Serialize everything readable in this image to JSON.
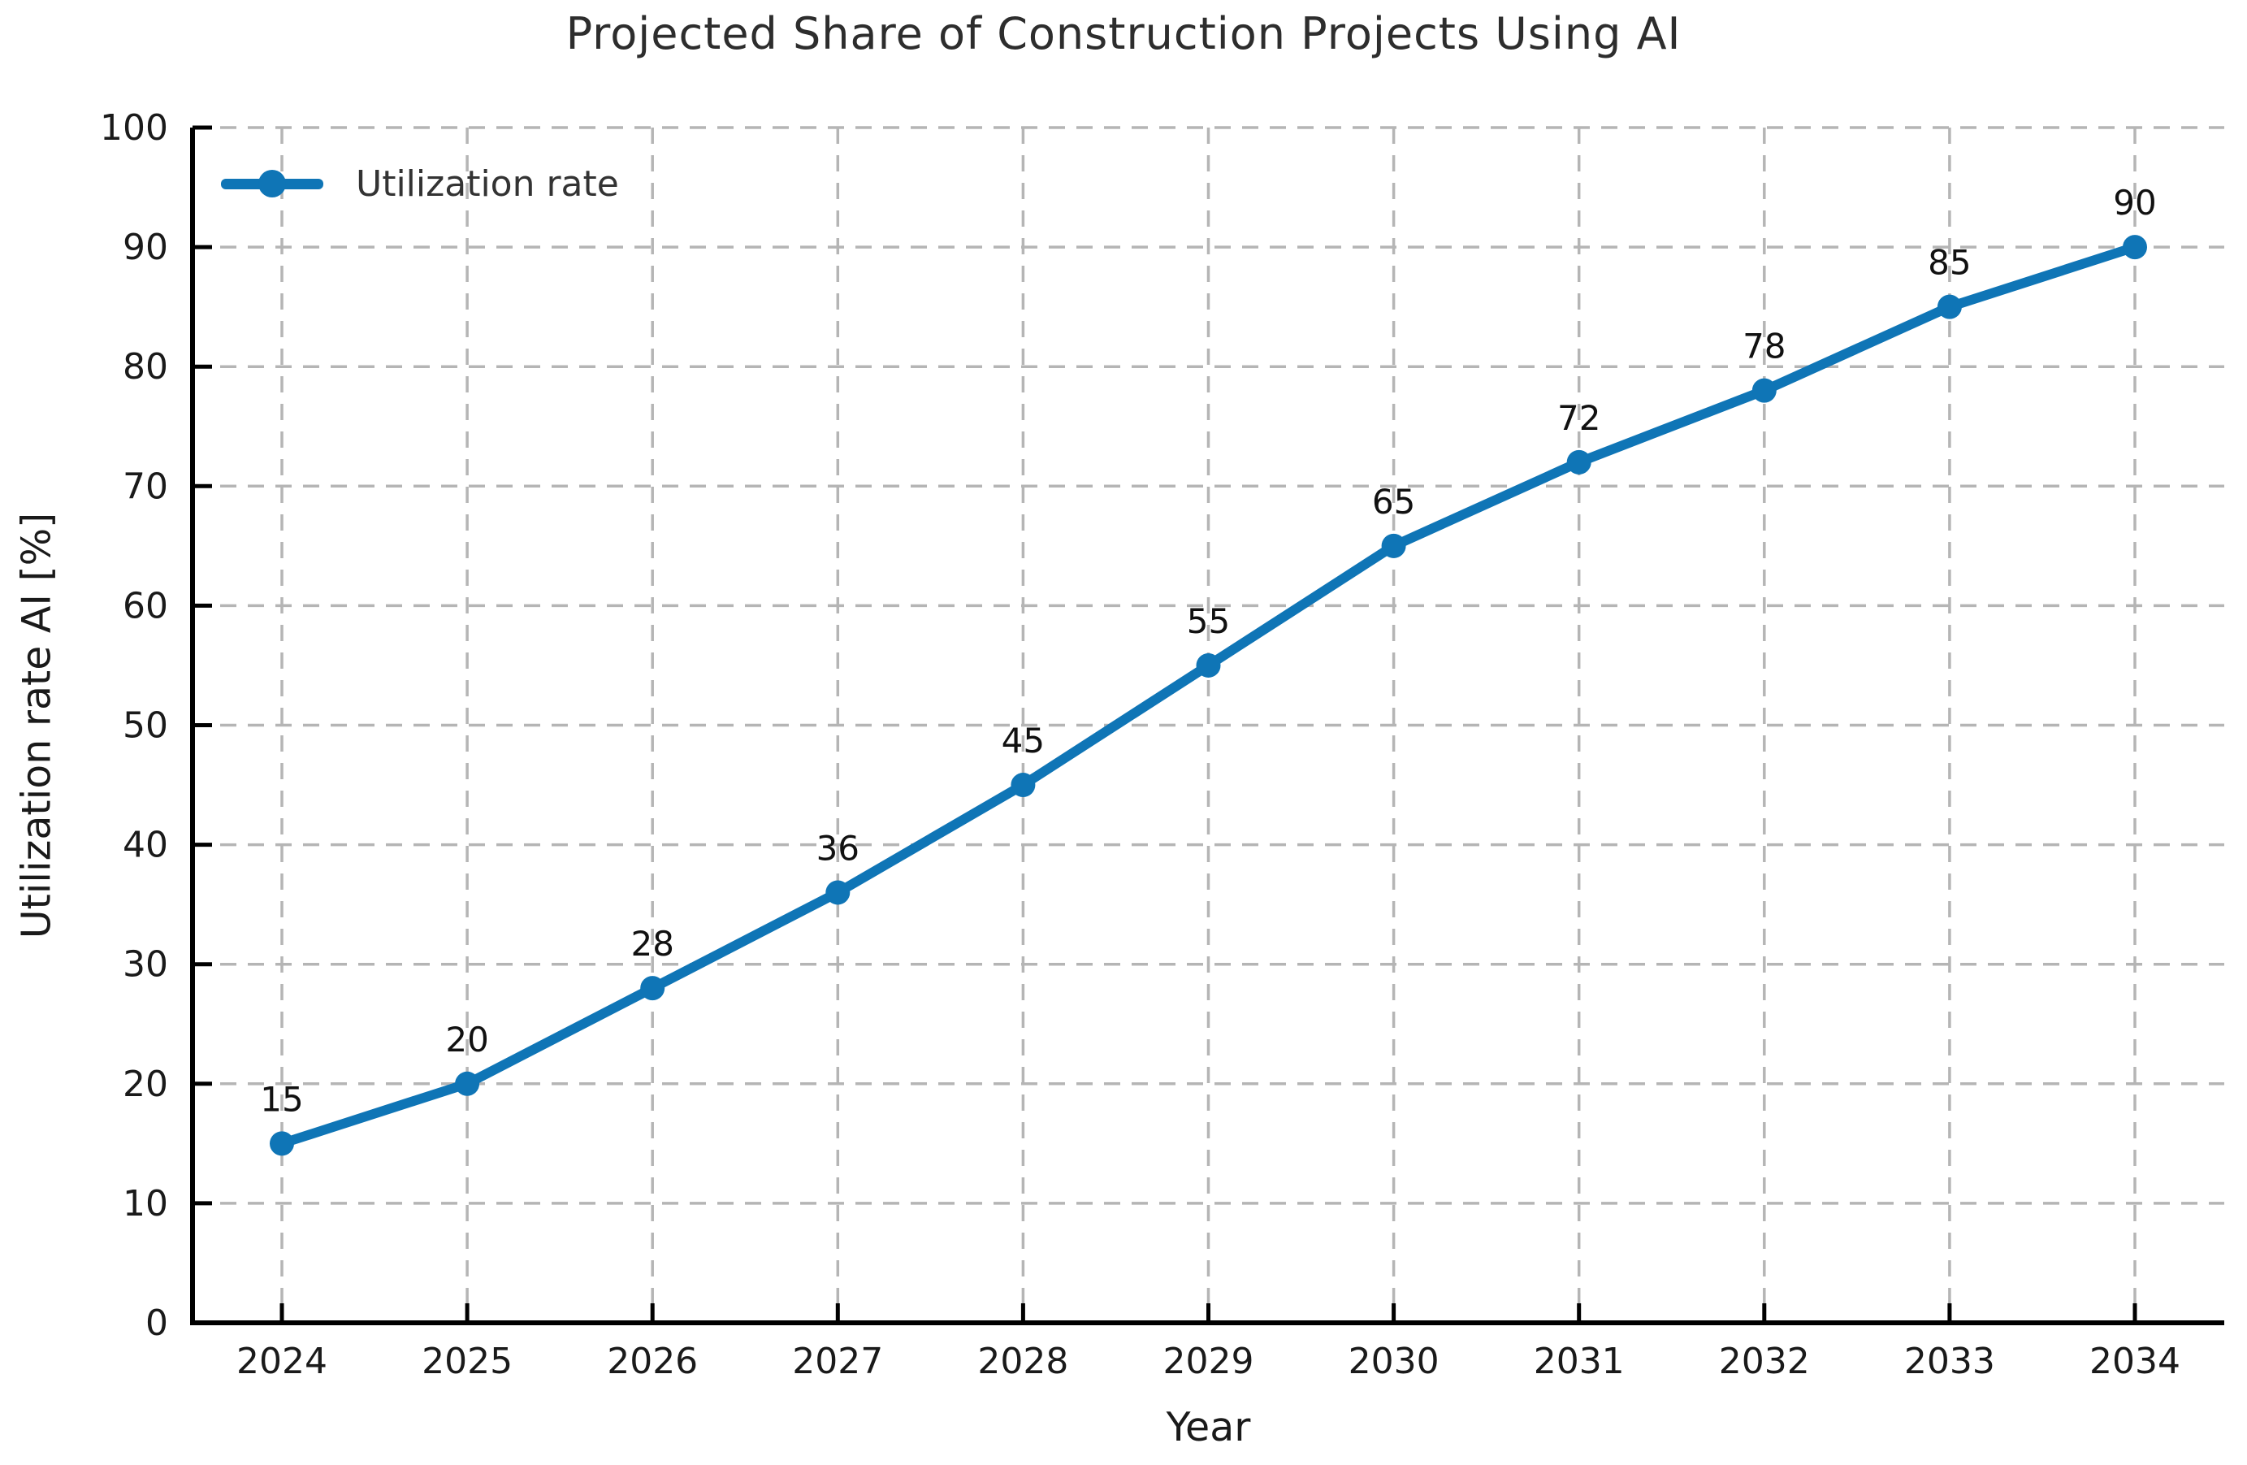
{
  "figure": {
    "background": "#ffffff"
  },
  "chart_data": {
    "type": "line",
    "title": "Projected Share of Construction Projects Using AI",
    "xlabel": "Year",
    "ylabel": "Utilization rate AI [%]",
    "x": [
      2024,
      2025,
      2026,
      2027,
      2028,
      2029,
      2030,
      2031,
      2032,
      2033,
      2034
    ],
    "series": [
      {
        "name": "Utilization rate",
        "values": [
          15,
          20,
          28,
          36,
          45,
          55,
          65,
          72,
          78,
          85,
          90
        ],
        "color": "#0f75b6",
        "marker": "circle",
        "point_labels_shown": true
      }
    ],
    "ylim": [
      0,
      100
    ],
    "yticks": [
      0,
      10,
      20,
      30,
      40,
      50,
      60,
      70,
      80,
      90,
      100
    ],
    "xticks": [
      2024,
      2025,
      2026,
      2027,
      2028,
      2029,
      2030,
      2031,
      2032,
      2033,
      2034
    ],
    "grid": {
      "show": true,
      "style": "dashed",
      "color": "#b5b5b5"
    },
    "legend": {
      "label": "Utilization rate",
      "position": "upper-left",
      "frame": false
    },
    "colors": {
      "line": "#0f75b6",
      "tick_text": "#1a1a1a",
      "point_label_text": "#111111",
      "spine": "#000000",
      "grid": "#b5b5b5"
    }
  }
}
